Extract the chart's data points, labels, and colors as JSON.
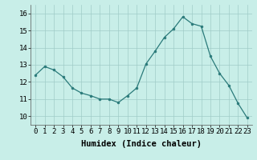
{
  "x": [
    0,
    1,
    2,
    3,
    4,
    5,
    6,
    7,
    8,
    9,
    10,
    11,
    12,
    13,
    14,
    15,
    16,
    17,
    18,
    19,
    20,
    21,
    22,
    23
  ],
  "y": [
    12.4,
    12.9,
    12.7,
    12.3,
    11.65,
    11.35,
    11.2,
    11.0,
    11.0,
    10.8,
    11.2,
    11.65,
    13.05,
    13.8,
    14.6,
    15.1,
    15.8,
    15.4,
    15.25,
    13.5,
    12.5,
    11.8,
    10.75,
    9.9
  ],
  "xlabel": "Humidex (Indice chaleur)",
  "ylim": [
    9.5,
    16.5
  ],
  "xlim": [
    -0.5,
    23.5
  ],
  "yticks": [
    10,
    11,
    12,
    13,
    14,
    15,
    16
  ],
  "xticks": [
    0,
    1,
    2,
    3,
    4,
    5,
    6,
    7,
    8,
    9,
    10,
    11,
    12,
    13,
    14,
    15,
    16,
    17,
    18,
    19,
    20,
    21,
    22,
    23
  ],
  "line_color": "#2a7a7a",
  "marker_color": "#2a7a7a",
  "bg_color": "#c8eee8",
  "grid_color": "#a0ccc8",
  "tick_label_fontsize": 6.5,
  "xlabel_fontsize": 7.5
}
